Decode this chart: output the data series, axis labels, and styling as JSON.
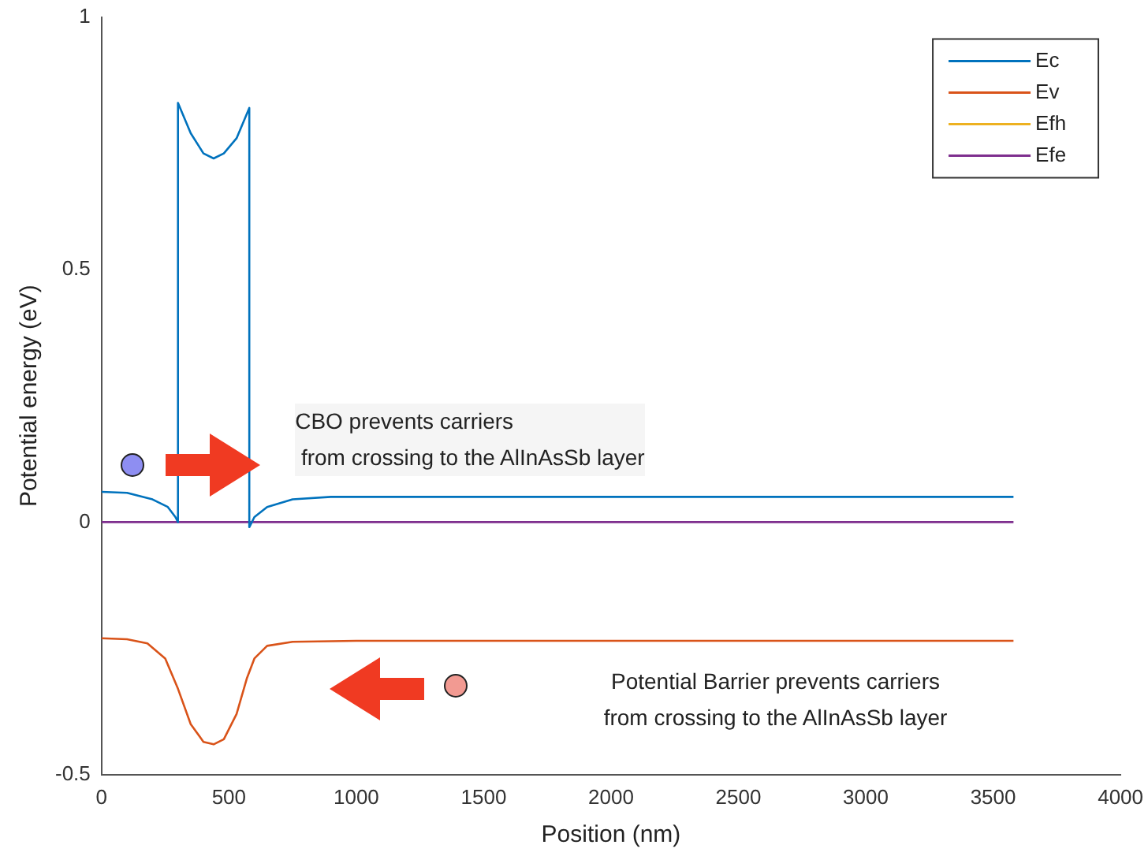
{
  "chart_data": {
    "type": "line",
    "xlabel": "Position (nm)",
    "ylabel": "Potential energy (eV)",
    "xlim": [
      0,
      4000
    ],
    "ylim": [
      -0.5,
      1
    ],
    "xticks": [
      0,
      500,
      1000,
      1500,
      2000,
      2500,
      3000,
      3500,
      4000
    ],
    "yticks": [
      -0.5,
      0,
      0.5,
      1
    ],
    "grid": false,
    "legend": "top right",
    "marker": "none",
    "line_style": "solid",
    "series": [
      {
        "name": "Ec",
        "color": "#0072bd",
        "x": [
          0,
          100,
          200,
          260,
          290,
          300,
          300,
          350,
          400,
          440,
          480,
          530,
          580,
          580,
          600,
          650,
          750,
          900,
          3580
        ],
        "values": [
          0.06,
          0.058,
          0.045,
          0.03,
          0.01,
          0,
          0.83,
          0.77,
          0.73,
          0.72,
          0.73,
          0.76,
          0.82,
          -0.01,
          0.01,
          0.03,
          0.045,
          0.05,
          0.05
        ]
      },
      {
        "name": "Ev",
        "color": "#d95319",
        "x": [
          0,
          100,
          180,
          250,
          300,
          350,
          400,
          440,
          480,
          530,
          570,
          600,
          650,
          750,
          1000,
          3580
        ],
        "values": [
          -0.23,
          -0.232,
          -0.24,
          -0.27,
          -0.33,
          -0.4,
          -0.435,
          -0.44,
          -0.43,
          -0.38,
          -0.31,
          -0.27,
          -0.245,
          -0.237,
          -0.235,
          -0.235
        ]
      },
      {
        "name": "Efh",
        "color": "#edb120"
      },
      {
        "name": "Efe",
        "color": "#7e2f8e",
        "x": [
          0,
          3580
        ],
        "values": [
          0,
          0
        ]
      }
    ],
    "annotations": [
      "CBO prevents carriers\n from crossing to the AlInAsSb layer",
      "Potential Barrier prevents carriers\nfrom crossing to the AlInAsSb layer"
    ]
  }
}
